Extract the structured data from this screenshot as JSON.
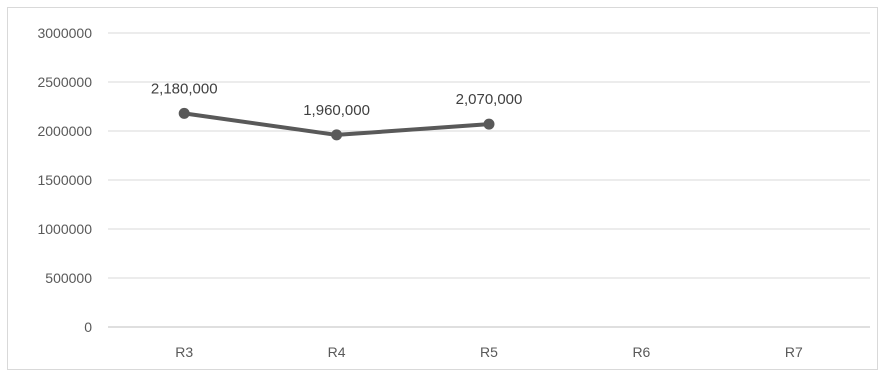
{
  "chart_data": {
    "type": "line",
    "title": "",
    "xlabel": "",
    "ylabel": "",
    "categories": [
      "R3",
      "R4",
      "R5",
      "R6",
      "R7"
    ],
    "series": [
      {
        "values": [
          2180000,
          1960000,
          2070000,
          null,
          null
        ]
      }
    ],
    "data_labels": [
      "2,180,000",
      "1,960,000",
      "2,070,000"
    ],
    "ylim": [
      0,
      3000000
    ],
    "yticks": [
      {
        "value": 0,
        "label": "0"
      },
      {
        "value": 500000,
        "label": "500000"
      },
      {
        "value": 1000000,
        "label": "1000000"
      },
      {
        "value": 1500000,
        "label": "1500000"
      },
      {
        "value": 2000000,
        "label": "2000000"
      },
      {
        "value": 2500000,
        "label": "2500000"
      },
      {
        "value": 3000000,
        "label": "3000000"
      }
    ],
    "grid": true,
    "legend": "none",
    "colors": {
      "line": "#595959",
      "grid": "#d9d9d9",
      "axis": "#bfbfbf",
      "text": "#595959"
    }
  }
}
